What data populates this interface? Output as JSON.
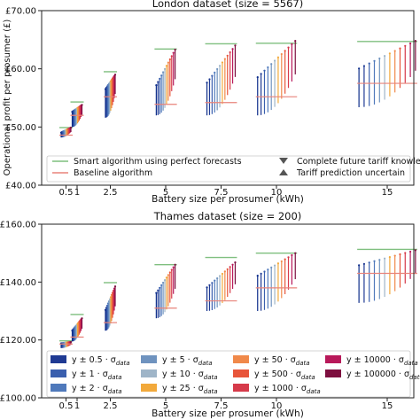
{
  "chart_data": [
    {
      "type": "line",
      "title": "London dataset (size = 5567)",
      "xlabel": "Battery size per prosumer (kWh)",
      "ylabel": "Operational profit per prosumer (£)",
      "x_ticks": [
        0.5,
        1,
        2.5,
        5,
        7.5,
        10,
        15
      ],
      "x_tick_labels": [
        "0.5",
        "1",
        "2.5",
        "5",
        "7.5",
        "10",
        "15"
      ],
      "xlim": [
        -0.6,
        16.2
      ],
      "ylim": [
        40,
        70
      ],
      "y_ticks": [
        40,
        50,
        60,
        70
      ],
      "y_tick_labels": [
        "£40.00",
        "£50.00",
        "£60.00",
        "£70.00"
      ],
      "grid": false,
      "legend_placement": "lower-center",
      "legend": [
        {
          "label": "Smart algorithm using perfect forecasts",
          "kind": "line",
          "color": "#7fbf7f"
        },
        {
          "label": "Complete future tariff knowledge",
          "kind": "marker-down",
          "color": "#555555"
        },
        {
          "label": "Baseline algorithm",
          "kind": "line",
          "color": "#e8837a"
        },
        {
          "label": "Tariff prediction uncertain",
          "kind": "marker-up",
          "color": "#555555"
        }
      ],
      "groups": [
        {
          "battery": 0.5,
          "perfect": 49.9,
          "baseline": 48.6,
          "bottom": 48.2,
          "top": 49.9
        },
        {
          "battery": 1,
          "perfect": 54.3,
          "baseline": 52.0,
          "bottom": 50.0,
          "top": 53.8
        },
        {
          "battery": 2.5,
          "perfect": 59.5,
          "baseline": 55.2,
          "bottom": 51.6,
          "top": 59.0
        },
        {
          "battery": 5,
          "perfect": 63.4,
          "baseline": 53.9,
          "bottom": 52.0,
          "top": 63.3
        },
        {
          "battery": 7.5,
          "perfect": 64.3,
          "baseline": 54.2,
          "bottom": 52.0,
          "top": 64.0
        },
        {
          "battery": 10,
          "perfect": 64.4,
          "baseline": 55.2,
          "bottom": 52.0,
          "top": 64.8
        },
        {
          "battery": 15,
          "perfect": 64.7,
          "baseline": 57.5,
          "bottom": 53.4,
          "top": 64.8
        }
      ]
    },
    {
      "type": "line",
      "title": "Thames dataset (size = 200)",
      "xlabel": "Battery size per prosumer (kWh)",
      "ylabel": "",
      "x_ticks": [
        0.5,
        1,
        2.5,
        5,
        7.5,
        10,
        15
      ],
      "x_tick_labels": [
        "0.5",
        "1",
        "2.5",
        "5",
        "7.5",
        "10",
        "15"
      ],
      "xlim": [
        -0.6,
        16.2
      ],
      "ylim": [
        100,
        160
      ],
      "y_ticks": [
        100,
        120,
        140,
        160
      ],
      "y_tick_labels": [
        "£100.00",
        "£120.00",
        "£140.00",
        "£160.00"
      ],
      "grid": false,
      "legend_placement": "lower-center",
      "legend": [
        {
          "label": "y ± 0.5 · σ",
          "sub": "data",
          "color": "#1f3a93"
        },
        {
          "label": "y ± 5 · σ",
          "sub": "data",
          "color": "#6f93bf"
        },
        {
          "label": "y ± 50 · σ",
          "sub": "data",
          "color": "#f0894a"
        },
        {
          "label": "y ± 10000 · σ",
          "sub": "data",
          "color": "#b8195a"
        },
        {
          "label": "y ± 1 · σ",
          "sub": "data",
          "color": "#3a5fae"
        },
        {
          "label": "y ± 10 · σ",
          "sub": "data",
          "color": "#9fb5c8"
        },
        {
          "label": "y ± 500 · σ",
          "sub": "data",
          "color": "#e8553a"
        },
        {
          "label": "y ± 100000 · σ",
          "sub": "data",
          "color": "#7d0f3f"
        },
        {
          "label": "y ± 2 · σ",
          "sub": "data",
          "color": "#4f79bb"
        },
        {
          "label": "y ± 25 · σ",
          "sub": "data",
          "color": "#f2a93b"
        },
        {
          "label": "y ± 1000 · σ",
          "sub": "data",
          "color": "#d63a4a"
        }
      ],
      "groups": [
        {
          "battery": 0.5,
          "perfect": 119.7,
          "baseline": 118.6,
          "bottom": 117.2,
          "top": 119.3
        },
        {
          "battery": 1,
          "perfect": 128.8,
          "baseline": 121.0,
          "bottom": 119.5,
          "top": 127.5
        },
        {
          "battery": 2.5,
          "perfect": 139.8,
          "baseline": 126.0,
          "bottom": 123.2,
          "top": 138.5
        },
        {
          "battery": 5,
          "perfect": 146.0,
          "baseline": 131.0,
          "bottom": 127.5,
          "top": 146.0
        },
        {
          "battery": 7.5,
          "perfect": 148.5,
          "baseline": 133.5,
          "bottom": 130.0,
          "top": 146.8
        },
        {
          "battery": 10,
          "perfect": 150.0,
          "baseline": 138.0,
          "bottom": 130.0,
          "top": 150.0
        },
        {
          "battery": 15,
          "perfect": 151.3,
          "baseline": 143.0,
          "bottom": 132.8,
          "top": 151.0
        }
      ]
    }
  ],
  "palette": [
    "#0d2d8a",
    "#1f3a93",
    "#3a5fae",
    "#4f79bb",
    "#6f93bf",
    "#9fb5c8",
    "#f2a93b",
    "#f0894a",
    "#e8553a",
    "#d63a4a",
    "#b8195a",
    "#7d0f3f"
  ]
}
